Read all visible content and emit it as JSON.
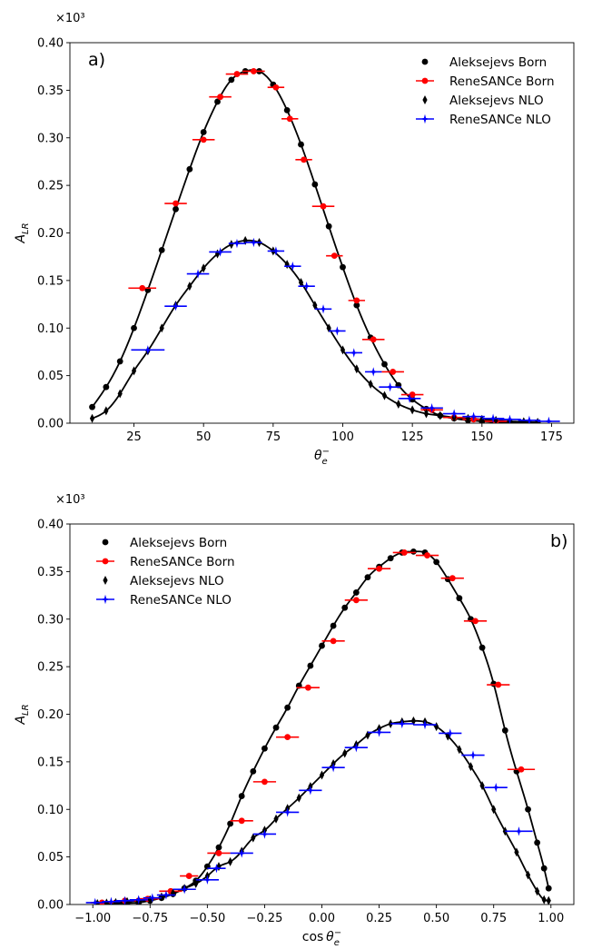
{
  "chart_data": [
    {
      "type": "line",
      "panel_label": "a)",
      "xlabel": "θe−",
      "ylabel": "A_LR",
      "y_multiplier": "×10³",
      "xlim": [
        2,
        183
      ],
      "ylim": [
        0,
        0.4
      ],
      "xticks": [
        25,
        50,
        75,
        100,
        125,
        150,
        175
      ],
      "xtick_labels": [
        "25",
        "50",
        "75",
        "100",
        "125",
        "150",
        "175"
      ],
      "yticks": [
        0,
        0.05,
        0.1,
        0.15,
        0.2,
        0.25,
        0.3,
        0.35,
        0.4
      ],
      "ytick_labels": [
        "0.00",
        "0.05",
        "0.10",
        "0.15",
        "0.20",
        "0.25",
        "0.30",
        "0.35",
        "0.40"
      ],
      "legend_position": "top-right",
      "series": [
        {
          "name": "Aleksejevs Born",
          "color": "#000000",
          "marker": "circle",
          "x": [
            10,
            15,
            20,
            25,
            30,
            35,
            40,
            45,
            50,
            55,
            60,
            65,
            70,
            75,
            80,
            85,
            90,
            95,
            100,
            105,
            110,
            115,
            120,
            125,
            130,
            135,
            140,
            145,
            150,
            155,
            160,
            165,
            170
          ],
          "y": [
            0.017,
            0.038,
            0.065,
            0.1,
            0.14,
            0.182,
            0.225,
            0.267,
            0.306,
            0.338,
            0.361,
            0.37,
            0.37,
            0.356,
            0.329,
            0.293,
            0.251,
            0.207,
            0.164,
            0.124,
            0.09,
            0.062,
            0.04,
            0.025,
            0.015,
            0.008,
            0.005,
            0.003,
            0.002,
            0.001,
            0.001,
            0.0005,
            0.0003
          ]
        },
        {
          "name": "ReneSANCe Born",
          "color": "#ff0000",
          "marker": "circle",
          "x": [
            28,
            40,
            50,
            56,
            62,
            68,
            76,
            81,
            86,
            93,
            97,
            105,
            111,
            118,
            125,
            132,
            140,
            147,
            155
          ],
          "xerr": [
            5,
            4,
            4,
            4,
            4,
            4,
            3,
            3,
            3,
            4,
            3,
            3,
            4,
            4,
            4,
            4,
            4,
            4,
            4
          ],
          "y": [
            0.142,
            0.231,
            0.298,
            0.343,
            0.367,
            0.37,
            0.353,
            0.32,
            0.277,
            0.228,
            0.176,
            0.129,
            0.088,
            0.054,
            0.03,
            0.014,
            0.006,
            0.004,
            0.002
          ]
        },
        {
          "name": "Aleksejevs NLO",
          "color": "#000000",
          "marker": "diamond",
          "x": [
            10,
            15,
            20,
            25,
            30,
            35,
            40,
            45,
            50,
            55,
            60,
            65,
            70,
            75,
            80,
            85,
            90,
            95,
            100,
            105,
            110,
            115,
            120,
            125,
            130,
            135,
            140,
            145,
            150,
            155,
            160,
            165,
            170
          ],
          "y": [
            0.005,
            0.013,
            0.031,
            0.055,
            0.076,
            0.1,
            0.124,
            0.144,
            0.163,
            0.178,
            0.188,
            0.192,
            0.19,
            0.181,
            0.167,
            0.148,
            0.124,
            0.1,
            0.077,
            0.057,
            0.041,
            0.029,
            0.02,
            0.014,
            0.01,
            0.008,
            0.006,
            0.005,
            0.004,
            0.003,
            0.002,
            0.0015,
            0.001
          ]
        },
        {
          "name": "ReneSANCe NLO",
          "color": "#0000ff",
          "marker": "star",
          "x": [
            30,
            40,
            48,
            56,
            62,
            68,
            76,
            82,
            87,
            93,
            98,
            104,
            111,
            117,
            124,
            132,
            140,
            147,
            154,
            160,
            167,
            174
          ],
          "xerr": [
            6,
            4,
            4,
            4,
            3,
            3,
            3,
            3,
            3,
            3,
            3,
            3,
            3,
            4,
            4,
            4,
            4,
            4,
            4,
            4,
            4,
            4
          ],
          "y": [
            0.077,
            0.123,
            0.157,
            0.18,
            0.189,
            0.19,
            0.181,
            0.165,
            0.144,
            0.12,
            0.097,
            0.074,
            0.054,
            0.038,
            0.026,
            0.016,
            0.01,
            0.007,
            0.005,
            0.004,
            0.003,
            0.002
          ]
        }
      ]
    },
    {
      "type": "line",
      "panel_label": "b)",
      "xlabel": "cos θe−",
      "ylabel": "A_LR",
      "y_multiplier": "×10³",
      "xlim": [
        -1.1,
        1.1
      ],
      "ylim": [
        0,
        0.4
      ],
      "xticks": [
        -1.0,
        -0.75,
        -0.5,
        -0.25,
        0.0,
        0.25,
        0.5,
        0.75,
        1.0
      ],
      "xtick_labels": [
        "−1.00",
        "−0.75",
        "−0.50",
        "−0.25",
        "0.00",
        "0.25",
        "0.50",
        "0.75",
        "1.00"
      ],
      "yticks": [
        0,
        0.05,
        0.1,
        0.15,
        0.2,
        0.25,
        0.3,
        0.35,
        0.4
      ],
      "ytick_labels": [
        "0.00",
        "0.05",
        "0.10",
        "0.15",
        "0.20",
        "0.25",
        "0.30",
        "0.35",
        "0.40"
      ],
      "legend_position": "top-left",
      "series": [
        {
          "name": "Aleksejevs Born",
          "color": "#000000",
          "marker": "circle",
          "x": [
            -0.98,
            -0.94,
            -0.9,
            -0.85,
            -0.8,
            -0.75,
            -0.7,
            -0.65,
            -0.6,
            -0.55,
            -0.5,
            -0.45,
            -0.4,
            -0.35,
            -0.3,
            -0.25,
            -0.2,
            -0.15,
            -0.1,
            -0.05,
            0.0,
            0.05,
            0.1,
            0.15,
            0.2,
            0.25,
            0.3,
            0.35,
            0.4,
            0.45,
            0.5,
            0.55,
            0.6,
            0.65,
            0.7,
            0.75,
            0.8,
            0.85,
            0.9,
            0.94,
            0.97,
            0.99
          ],
          "y": [
            0.0003,
            0.0005,
            0.001,
            0.0015,
            0.002,
            0.004,
            0.007,
            0.011,
            0.017,
            0.025,
            0.04,
            0.06,
            0.085,
            0.114,
            0.14,
            0.164,
            0.186,
            0.207,
            0.23,
            0.251,
            0.272,
            0.293,
            0.312,
            0.328,
            0.344,
            0.355,
            0.364,
            0.37,
            0.371,
            0.37,
            0.36,
            0.342,
            0.322,
            0.3,
            0.27,
            0.232,
            0.183,
            0.14,
            0.1,
            0.065,
            0.038,
            0.017
          ]
        },
        {
          "name": "ReneSANCe Born",
          "color": "#ff0000",
          "marker": "circle",
          "x": [
            -0.96,
            -0.86,
            -0.76,
            -0.66,
            -0.58,
            -0.45,
            -0.35,
            -0.25,
            -0.15,
            -0.06,
            0.05,
            0.15,
            0.25,
            0.36,
            0.46,
            0.57,
            0.67,
            0.77,
            0.87
          ],
          "xerr": [
            0.05,
            0.05,
            0.05,
            0.05,
            0.04,
            0.05,
            0.05,
            0.05,
            0.05,
            0.05,
            0.05,
            0.05,
            0.05,
            0.05,
            0.05,
            0.05,
            0.05,
            0.05,
            0.06
          ],
          "y": [
            0.002,
            0.004,
            0.006,
            0.014,
            0.03,
            0.054,
            0.088,
            0.129,
            0.176,
            0.228,
            0.277,
            0.32,
            0.353,
            0.37,
            0.367,
            0.343,
            0.298,
            0.231,
            0.142
          ]
        },
        {
          "name": "Aleksejevs NLO",
          "color": "#000000",
          "marker": "diamond",
          "x": [
            -0.98,
            -0.94,
            -0.9,
            -0.85,
            -0.8,
            -0.75,
            -0.7,
            -0.65,
            -0.6,
            -0.55,
            -0.5,
            -0.45,
            -0.4,
            -0.35,
            -0.3,
            -0.25,
            -0.2,
            -0.15,
            -0.1,
            -0.05,
            0.0,
            0.05,
            0.1,
            0.15,
            0.2,
            0.25,
            0.3,
            0.35,
            0.4,
            0.45,
            0.5,
            0.55,
            0.6,
            0.65,
            0.7,
            0.75,
            0.8,
            0.85,
            0.9,
            0.94,
            0.97,
            0.99
          ],
          "y": [
            0.001,
            0.0015,
            0.002,
            0.003,
            0.004,
            0.005,
            0.008,
            0.012,
            0.017,
            0.022,
            0.03,
            0.04,
            0.045,
            0.056,
            0.07,
            0.078,
            0.09,
            0.101,
            0.112,
            0.124,
            0.136,
            0.148,
            0.159,
            0.168,
            0.178,
            0.185,
            0.19,
            0.192,
            0.193,
            0.192,
            0.187,
            0.177,
            0.163,
            0.145,
            0.125,
            0.1,
            0.077,
            0.055,
            0.031,
            0.014,
            0.005,
            0.004
          ]
        },
        {
          "name": "ReneSANCe NLO",
          "color": "#0000ff",
          "marker": "star",
          "x": [
            -0.99,
            -0.92,
            -0.86,
            -0.8,
            -0.74,
            -0.68,
            -0.6,
            -0.5,
            -0.46,
            -0.35,
            -0.25,
            -0.15,
            -0.05,
            0.05,
            0.15,
            0.25,
            0.35,
            0.45,
            0.56,
            0.66,
            0.76,
            0.86
          ],
          "xerr": [
            0.04,
            0.04,
            0.04,
            0.04,
            0.04,
            0.04,
            0.05,
            0.05,
            0.04,
            0.05,
            0.05,
            0.05,
            0.05,
            0.05,
            0.05,
            0.05,
            0.05,
            0.05,
            0.05,
            0.05,
            0.05,
            0.06
          ],
          "y": [
            0.002,
            0.003,
            0.004,
            0.005,
            0.007,
            0.01,
            0.016,
            0.026,
            0.038,
            0.054,
            0.074,
            0.097,
            0.12,
            0.144,
            0.165,
            0.181,
            0.19,
            0.189,
            0.18,
            0.157,
            0.123,
            0.077
          ]
        }
      ]
    }
  ]
}
